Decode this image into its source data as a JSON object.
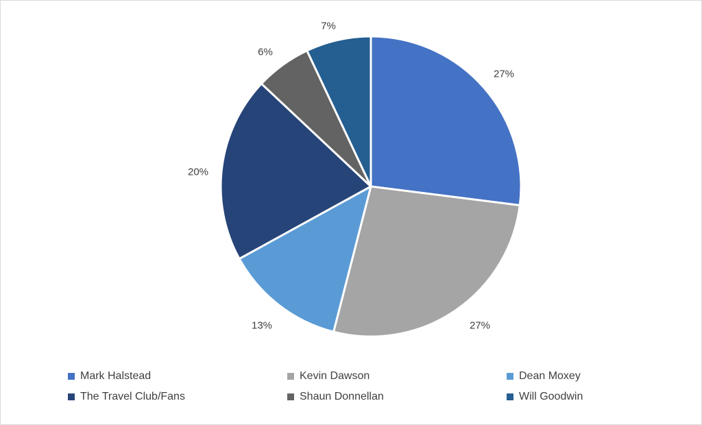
{
  "chart_data": {
    "type": "pie",
    "title": "",
    "legend_position": "bottom",
    "start_angle_deg": 0,
    "direction": "clockwise",
    "unit": "percent",
    "categories": [
      "Mark Halstead",
      "Kevin Dawson",
      "Dean Moxey",
      "The Travel Club/Fans",
      "Shaun Donnellan",
      "Will Goodwin"
    ],
    "values": [
      27,
      27,
      13,
      20,
      6,
      7
    ],
    "slices": [
      {
        "id": "mark-halstead",
        "name": "Mark Halstead",
        "value": 27,
        "pct_label": "27%",
        "color": "#4472C4"
      },
      {
        "id": "kevin-dawson",
        "name": "Kevin Dawson",
        "value": 27,
        "pct_label": "27%",
        "color": "#A5A5A5"
      },
      {
        "id": "dean-moxey",
        "name": "Dean Moxey",
        "value": 13,
        "pct_label": "13%",
        "color": "#5B9BD5"
      },
      {
        "id": "travel-club-fans",
        "name": "The Travel Club/Fans",
        "value": 20,
        "pct_label": "20%",
        "color": "#264478"
      },
      {
        "id": "shaun-donnellan",
        "name": "Shaun Donnellan",
        "value": 6,
        "pct_label": "6%",
        "color": "#636363"
      },
      {
        "id": "will-goodwin",
        "name": "Will Goodwin",
        "value": 7,
        "pct_label": "7%",
        "color": "#255E91"
      }
    ],
    "label_color": "#404040",
    "slice_border_color": "#FFFFFF"
  }
}
